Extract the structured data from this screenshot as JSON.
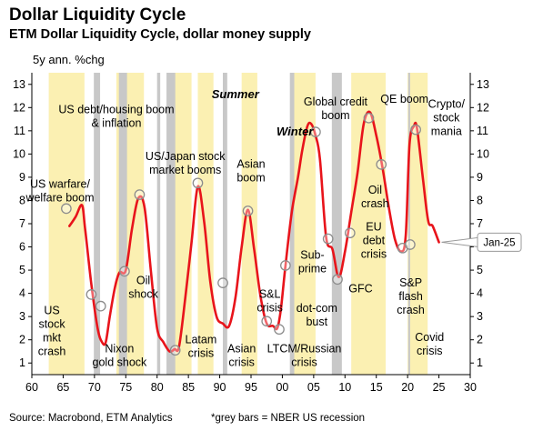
{
  "header": {
    "title": "Dollar Liquidity Cycle",
    "subtitle": "ETM Dollar Liquidity Cycle, dollar money supply",
    "unit": "5y ann. %chg"
  },
  "footer": {
    "source": "Source: Macrobond, ETM Analytics",
    "note": "*grey bars = NBER US recession"
  },
  "chart_data": {
    "type": "line",
    "title": "Dollar Liquidity Cycle",
    "subtitle": "ETM Dollar Liquidity Cycle, dollar money supply",
    "ylabel": "5y ann. %chg",
    "xlim": [
      1960,
      2030
    ],
    "ylim": [
      0.5,
      13.5
    ],
    "x_ticks": [
      1960,
      1965,
      1970,
      1975,
      1980,
      1985,
      1990,
      1995,
      2000,
      2005,
      2010,
      2015,
      2020,
      2025,
      2030
    ],
    "x_tick_labels": [
      "60",
      "65",
      "70",
      "75",
      "80",
      "85",
      "90",
      "95",
      "00",
      "05",
      "10",
      "15",
      "20",
      "25",
      "30"
    ],
    "y_ticks": [
      1,
      2,
      3,
      4,
      5,
      6,
      7,
      8,
      9,
      10,
      11,
      12,
      13
    ],
    "y_tick_labels": [
      "1",
      "2",
      "3",
      "4",
      "5",
      "6",
      "7",
      "8",
      "9",
      "10",
      "11",
      "12",
      "13"
    ],
    "grid": false,
    "colors": {
      "line": "#e8141b",
      "summer_band": "#fbf0b2",
      "recession_bar": "#c8c8c8",
      "marker_fill": "#ffffff",
      "marker_stroke": "#8c8c8c",
      "axis": "#000000"
    },
    "summer_bands": [
      [
        1962.7,
        1968.4
      ],
      [
        1973.5,
        1977.9
      ],
      [
        1982.0,
        1985.5
      ],
      [
        1986.5,
        1989.0
      ],
      [
        1993.5,
        1996.0
      ],
      [
        2001.6,
        2005.3
      ],
      [
        2011.0,
        2016.5
      ],
      [
        2020.0,
        2023.2
      ]
    ],
    "recession_bars": [
      [
        1969.9,
        1970.9
      ],
      [
        1973.9,
        1975.2
      ],
      [
        1980.0,
        1980.5
      ],
      [
        1981.5,
        1982.9
      ],
      [
        1990.5,
        1991.2
      ],
      [
        2001.2,
        2001.9
      ],
      [
        2007.9,
        2009.5
      ],
      [
        2020.1,
        2020.4
      ]
    ],
    "series": [
      {
        "x": [
          1966.0,
          1967.0,
          1968.0,
          1968.5,
          1969.5,
          1970.5,
          1971.2,
          1971.8,
          1972.5,
          1973.3,
          1974.0,
          1975.0,
          1976.0,
          1977.0,
          1978.0,
          1979.0,
          1980.0,
          1981.0,
          1982.0,
          1982.8,
          1983.5,
          1984.5,
          1985.5,
          1986.5,
          1987.5,
          1988.5,
          1989.5,
          1990.5,
          1991.5,
          1992.5,
          1993.5,
          1994.5,
          1995.5,
          1996.5,
          1997.5,
          1998.5,
          1999.2,
          1999.8,
          2000.5,
          2001.5,
          2002.5,
          2003.2,
          2004.0,
          2004.6,
          2005.3,
          2006.0,
          2007.0,
          2008.0,
          2009.0,
          2010.0,
          2011.0,
          2012.0,
          2013.0,
          2014.0,
          2015.0,
          2016.0,
          2017.0,
          2018.0,
          2019.0,
          2019.7,
          2020.3,
          2021.0,
          2021.5,
          2022.5,
          2023.3,
          2024.0,
          2025.0
        ],
        "y": [
          6.9,
          7.3,
          7.8,
          6.8,
          4.4,
          2.5,
          1.9,
          1.9,
          3.1,
          4.3,
          4.9,
          5.0,
          6.8,
          8.1,
          7.7,
          5.0,
          2.5,
          1.9,
          1.5,
          1.6,
          1.7,
          3.8,
          6.2,
          8.6,
          7.1,
          4.5,
          3.0,
          2.7,
          2.6,
          3.8,
          6.0,
          7.6,
          5.9,
          3.9,
          2.7,
          2.6,
          2.5,
          3.4,
          5.2,
          7.5,
          9.0,
          10.2,
          11.2,
          11.3,
          10.8,
          9.8,
          6.4,
          5.9,
          4.7,
          5.8,
          7.5,
          9.2,
          11.3,
          11.8,
          10.8,
          9.4,
          7.7,
          6.3,
          5.8,
          6.5,
          10.4,
          11.2,
          11.1,
          8.8,
          7.1,
          6.9,
          6.2
        ]
      }
    ],
    "end_label": "Jan-25",
    "annotations": {
      "seasons": [
        {
          "id": "summer",
          "text": "Summer",
          "x": 1992.5,
          "y": 12.4
        },
        {
          "id": "winter",
          "text": "Winter",
          "x": 2002.0,
          "y": 10.8
        }
      ],
      "markers": [
        {
          "id": "m-us-warfare",
          "x": 1965.5,
          "y": 7.65
        },
        {
          "id": "m-us-stock-crash",
          "x": 1969.5,
          "y": 3.95
        },
        {
          "id": "m-nixon",
          "x": 1971.0,
          "y": 3.45
        },
        {
          "id": "m-us-debt-housing",
          "x": 1977.2,
          "y": 8.25
        },
        {
          "id": "m-oil-shock",
          "x": 1974.8,
          "y": 4.95
        },
        {
          "id": "m-latam",
          "x": 1982.9,
          "y": 1.55
        },
        {
          "id": "m-us-japan",
          "x": 1986.5,
          "y": 8.75
        },
        {
          "id": "m-asian-boom",
          "x": 1994.5,
          "y": 7.55
        },
        {
          "id": "m-sl-crisis",
          "x": 1990.5,
          "y": 4.45
        },
        {
          "id": "m-asian-crisis",
          "x": 1997.5,
          "y": 2.8
        },
        {
          "id": "m-ltcm",
          "x": 1999.5,
          "y": 2.45
        },
        {
          "id": "m-dotcom",
          "x": 2000.5,
          "y": 5.2
        },
        {
          "id": "m-global-credit",
          "x": 2005.3,
          "y": 10.95
        },
        {
          "id": "m-subprime",
          "x": 2007.3,
          "y": 6.35
        },
        {
          "id": "m-gfc",
          "x": 2008.8,
          "y": 4.6
        },
        {
          "id": "m-eu-debt",
          "x": 2010.8,
          "y": 6.6
        },
        {
          "id": "m-qe-boom",
          "x": 2013.8,
          "y": 11.55
        },
        {
          "id": "m-oil-crash",
          "x": 2015.8,
          "y": 9.55
        },
        {
          "id": "m-sp-flash",
          "x": 2019.2,
          "y": 5.95
        },
        {
          "id": "m-covid",
          "x": 2020.4,
          "y": 6.1
        },
        {
          "id": "m-crypto",
          "x": 2021.3,
          "y": 11.05
        }
      ],
      "labels": [
        {
          "id": "us-warfare",
          "lines": [
            "US warfare/",
            "welfare boom"
          ],
          "x": 1964.5,
          "y": 8.55,
          "anchor": "middle"
        },
        {
          "id": "us-debt-housing",
          "lines": [
            "US debt/housing boom",
            "& inflation"
          ],
          "x": 1973.5,
          "y": 11.75,
          "anchor": "middle"
        },
        {
          "id": "us-japan",
          "lines": [
            "US/Japan stock",
            "market booms"
          ],
          "x": 1984.5,
          "y": 9.75,
          "anchor": "middle"
        },
        {
          "id": "asian-boom",
          "lines": [
            "Asian",
            "boom"
          ],
          "x": 1995.0,
          "y": 9.4,
          "anchor": "middle"
        },
        {
          "id": "global-credit",
          "lines": [
            "Global credit",
            "boom"
          ],
          "x": 2008.5,
          "y": 12.1,
          "anchor": "middle"
        },
        {
          "id": "qe-boom",
          "lines": [
            "QE boom"
          ],
          "x": 2019.5,
          "y": 12.2,
          "anchor": "middle"
        },
        {
          "id": "crypto",
          "lines": [
            "Crypto/",
            "stock",
            "mania"
          ],
          "x": 2026.2,
          "y": 12.0,
          "anchor": "middle"
        },
        {
          "id": "oil-shock",
          "lines": [
            "Oil",
            "shock"
          ],
          "x": 1977.8,
          "y": 4.4,
          "anchor": "middle"
        },
        {
          "id": "oil-crash",
          "lines": [
            "Oil",
            "crash"
          ],
          "x": 2014.8,
          "y": 8.3,
          "anchor": "middle"
        },
        {
          "id": "sub-prime",
          "lines": [
            "Sub-",
            "prime"
          ],
          "x": 2004.8,
          "y": 5.5,
          "anchor": "middle"
        },
        {
          "id": "eu-debt",
          "lines": [
            "EU",
            "debt",
            "crisis"
          ],
          "x": 2014.6,
          "y": 6.7,
          "anchor": "middle"
        },
        {
          "id": "us-stock-crash",
          "lines": [
            "US",
            "stock",
            "mkt",
            "crash"
          ],
          "x": 1963.2,
          "y": 3.1,
          "anchor": "middle"
        },
        {
          "id": "nixon",
          "lines": [
            "Nixon",
            "gold shock"
          ],
          "x": 1974.0,
          "y": 1.45,
          "anchor": "middle"
        },
        {
          "id": "latam",
          "lines": [
            "Latam",
            "crisis"
          ],
          "x": 1887.0,
          "y": 1.2,
          "anchor": "middle",
          "skip": true
        },
        {
          "id": "sl-crisis",
          "lines": [
            "S&L",
            "crisis"
          ],
          "x": 1998.0,
          "y": 3.8,
          "anchor": "middle"
        },
        {
          "id": "asian-crisis",
          "lines": [
            "Asian",
            "crisis"
          ],
          "x": 1993.5,
          "y": 1.45,
          "anchor": "middle"
        },
        {
          "id": "ltcm",
          "lines": [
            "LTCM/Russian",
            "crisis"
          ],
          "x": 2003.5,
          "y": 1.45,
          "anchor": "middle"
        },
        {
          "id": "dotcom",
          "lines": [
            "dot-com",
            "bust"
          ],
          "x": 2005.5,
          "y": 3.2,
          "anchor": "middle"
        },
        {
          "id": "gfc",
          "lines": [
            "GFC"
          ],
          "x": 2012.5,
          "y": 4.05,
          "anchor": "middle"
        },
        {
          "id": "sp-flash",
          "lines": [
            "S&P",
            "flash",
            "crash"
          ],
          "x": 2020.5,
          "y": 4.3,
          "anchor": "middle"
        },
        {
          "id": "covid",
          "lines": [
            "Covid",
            "crisis"
          ],
          "x": 2023.5,
          "y": 1.95,
          "anchor": "middle"
        }
      ],
      "latam_label": {
        "lines": [
          "Latam",
          "crisis"
        ],
        "x": 1987.0,
        "y": 1.85
      }
    }
  }
}
